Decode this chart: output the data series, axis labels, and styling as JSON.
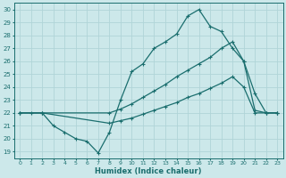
{
  "xlabel": "Humidex (Indice chaleur)",
  "bg_color": "#cce8ea",
  "grid_color": "#b0d4d8",
  "line_color": "#1a6e6e",
  "xlim": [
    -0.5,
    23.5
  ],
  "ylim": [
    18.5,
    30.5
  ],
  "xticks": [
    0,
    1,
    2,
    3,
    4,
    5,
    6,
    7,
    8,
    9,
    10,
    11,
    12,
    13,
    14,
    15,
    16,
    17,
    18,
    19,
    20,
    21,
    22,
    23
  ],
  "yticks": [
    19,
    20,
    21,
    22,
    23,
    24,
    25,
    26,
    27,
    28,
    29,
    30
  ],
  "line1_x": [
    0,
    1,
    2,
    3,
    4,
    5,
    6,
    7,
    8,
    9,
    10,
    11,
    12,
    13,
    14,
    15,
    16,
    17,
    18,
    19,
    20,
    21,
    22,
    23
  ],
  "line1_y": [
    22,
    22,
    22,
    21,
    20.5,
    20,
    19.8,
    18.9,
    20.5,
    23,
    25.2,
    25.8,
    27,
    27.5,
    28.1,
    29.5,
    30,
    28.7,
    28.3,
    27,
    26,
    23.5,
    22,
    22
  ],
  "line2_x": [
    0,
    2,
    8,
    9,
    10,
    11,
    12,
    13,
    14,
    15,
    16,
    17,
    18,
    19,
    20,
    21,
    22,
    23
  ],
  "line2_y": [
    22,
    22,
    22,
    22.3,
    22.7,
    23.2,
    23.7,
    24.2,
    24.8,
    25.3,
    25.8,
    26.3,
    27,
    27.5,
    26,
    22.2,
    22,
    22
  ],
  "line3_x": [
    0,
    2,
    8,
    9,
    10,
    11,
    12,
    13,
    14,
    15,
    16,
    17,
    18,
    19,
    20,
    21,
    22,
    23
  ],
  "line3_y": [
    22,
    22,
    21.2,
    21.4,
    21.6,
    21.9,
    22.2,
    22.5,
    22.8,
    23.2,
    23.5,
    23.9,
    24.3,
    24.8,
    24,
    22,
    22,
    22
  ]
}
